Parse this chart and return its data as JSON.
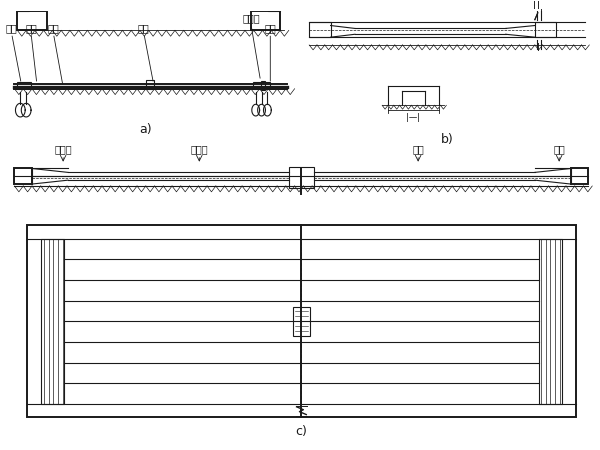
{
  "bg_color": "#ffffff",
  "line_color": "#1a1a1a",
  "lw": 0.8,
  "lw2": 1.4,
  "font_size": 7,
  "label_a": "a)",
  "label_b": "b)",
  "label_c": "c)",
  "fig_width": 6.0,
  "fig_height": 4.5,
  "dpi": 100
}
